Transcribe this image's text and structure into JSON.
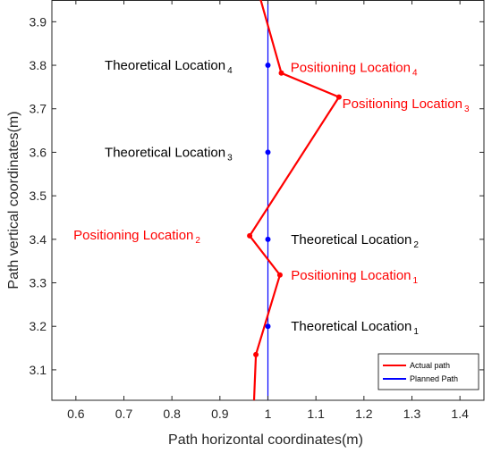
{
  "chart_data": {
    "type": "line",
    "xlabel": "Path horizontal coordinates(m)",
    "ylabel": "Path vertical coordinates(m)",
    "xlim": [
      0.55,
      1.45
    ],
    "ylim": [
      3.03,
      3.95
    ],
    "xticks": [
      "0.6",
      "0.7",
      "0.8",
      "0.9",
      "1",
      "1.1",
      "1.2",
      "1.3",
      "1.4"
    ],
    "yticks": [
      "3.1",
      "3.2",
      "3.3",
      "3.4",
      "3.5",
      "3.6",
      "3.7",
      "3.8",
      "3.9"
    ],
    "grid": false,
    "legend_position": "bottom-right",
    "series": [
      {
        "name": "Actual path",
        "color": "#ff0000",
        "x": [
          0.97,
          0.975,
          1.025,
          0.962,
          1.148,
          1.028,
          0.985
        ],
        "y": [
          3.0,
          3.135,
          3.318,
          3.408,
          3.727,
          3.782,
          3.95
        ],
        "markers": [
          {
            "x": 0.975,
            "y": 3.135
          },
          {
            "x": 1.025,
            "y": 3.318
          },
          {
            "x": 0.962,
            "y": 3.408
          },
          {
            "x": 1.148,
            "y": 3.727
          },
          {
            "x": 1.028,
            "y": 3.782
          }
        ]
      },
      {
        "name": "Planned Path",
        "color": "#0000ff",
        "x": [
          1.0,
          1.0
        ],
        "y": [
          3.0,
          3.95
        ],
        "markers": [
          {
            "x": 1.0,
            "y": 3.2
          },
          {
            "x": 1.0,
            "y": 3.4
          },
          {
            "x": 1.0,
            "y": 3.6
          },
          {
            "x": 1.0,
            "y": 3.8
          }
        ]
      }
    ],
    "annotations": [
      {
        "text": "Theoretical Location",
        "sub": "4",
        "x": 0.66,
        "y": 3.8,
        "color": "#000000"
      },
      {
        "text": "Positioning Location",
        "sub": "4",
        "x": 1.047,
        "y": 3.795,
        "color": "#ff0000"
      },
      {
        "text": "Positioning Location",
        "sub": "3",
        "x": 1.155,
        "y": 3.712,
        "color": "#ff0000"
      },
      {
        "text": "Theoretical Location",
        "sub": "3",
        "x": 0.66,
        "y": 3.6,
        "color": "#000000"
      },
      {
        "text": "Positioning Location",
        "sub": "2",
        "x": 0.595,
        "y": 3.41,
        "color": "#ff0000"
      },
      {
        "text": "Theoretical Location",
        "sub": "2",
        "x": 1.048,
        "y": 3.4,
        "color": "#000000"
      },
      {
        "text": "Positioning Location",
        "sub": "1",
        "x": 1.048,
        "y": 3.318,
        "color": "#ff0000"
      },
      {
        "text": "Theoretical Location",
        "sub": "1",
        "x": 1.048,
        "y": 3.2,
        "color": "#000000"
      }
    ]
  }
}
